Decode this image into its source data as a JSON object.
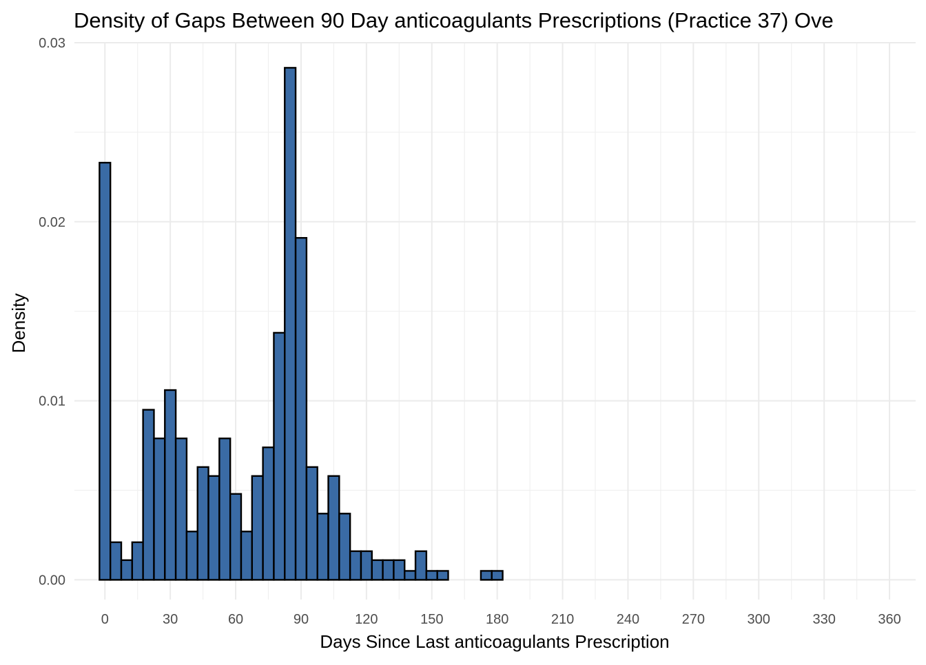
{
  "chart_data": {
    "type": "bar",
    "title": "Density of Gaps Between 90 Day anticoagulants Prescriptions (Practice 37) Ove",
    "xlabel": "Days Since Last anticoagulants Prescription",
    "ylabel": "Density",
    "xlim": [
      -14,
      372
    ],
    "ylim": [
      -0.0011,
      0.03
    ],
    "x_ticks": [
      0,
      30,
      60,
      90,
      120,
      150,
      180,
      210,
      240,
      270,
      300,
      330,
      360
    ],
    "y_ticks": [
      0.0,
      0.01,
      0.02,
      0.03
    ],
    "y_tick_labels": [
      "0.00",
      "0.01",
      "0.02",
      "0.03"
    ],
    "grid": true,
    "legend": "none",
    "bar_color": "#3A6BA5",
    "bar_outline": "#000000",
    "bin_width": 5,
    "bin_start": -2.5,
    "values": [
      0.0233,
      0.0021,
      0.0011,
      0.0021,
      0.0095,
      0.0079,
      0.0106,
      0.0079,
      0.0027,
      0.0063,
      0.0058,
      0.0079,
      0.0048,
      0.0027,
      0.0058,
      0.0074,
      0.0138,
      0.0286,
      0.0191,
      0.0063,
      0.0037,
      0.0058,
      0.0037,
      0.0016,
      0.0016,
      0.0011,
      0.0011,
      0.0011,
      0.0005,
      0.0016,
      0.0005,
      0.0005,
      0,
      0,
      0,
      0.0005,
      0.0005,
      0,
      0,
      0,
      0,
      0,
      0,
      0,
      0,
      0,
      0,
      0,
      0,
      0,
      0,
      0,
      0,
      0,
      0,
      0,
      0,
      0,
      0,
      0,
      0,
      0,
      0,
      0,
      0,
      0,
      0,
      0,
      0,
      0,
      0,
      0,
      0,
      0,
      0
    ]
  }
}
